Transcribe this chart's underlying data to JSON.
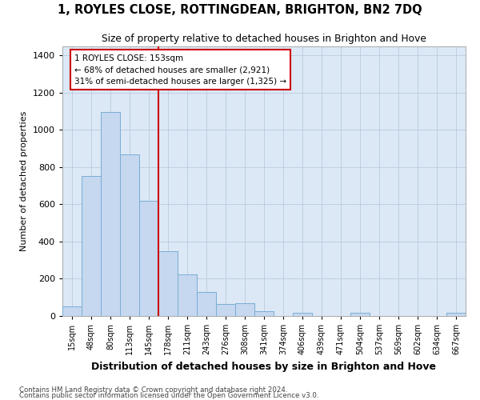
{
  "title": "1, ROYLES CLOSE, ROTTINGDEAN, BRIGHTON, BN2 7DQ",
  "subtitle": "Size of property relative to detached houses in Brighton and Hove",
  "xlabel": "Distribution of detached houses by size in Brighton and Hove",
  "ylabel": "Number of detached properties",
  "footer_line1": "Contains HM Land Registry data © Crown copyright and database right 2024.",
  "footer_line2": "Contains public sector information licensed under the Open Government Licence v3.0.",
  "bar_color": "#c5d8ef",
  "bar_edge_color": "#7aadd4",
  "bg_color": "#dce8f5",
  "vline_x": 4,
  "vline_color": "#cc0000",
  "annotation_line1": "1 ROYLES CLOSE: 153sqm",
  "annotation_line2": "← 68% of detached houses are smaller (2,921)",
  "annotation_line3": "31% of semi-detached houses are larger (1,325) →",
  "annotation_box_color": "#ffffff",
  "annotation_box_edge": "#cc0000",
  "categories": [
    "15sqm",
    "48sqm",
    "80sqm",
    "113sqm",
    "145sqm",
    "178sqm",
    "211sqm",
    "243sqm",
    "276sqm",
    "308sqm",
    "341sqm",
    "374sqm",
    "406sqm",
    "439sqm",
    "471sqm",
    "504sqm",
    "537sqm",
    "569sqm",
    "602sqm",
    "634sqm",
    "667sqm"
  ],
  "values": [
    50,
    750,
    1095,
    870,
    620,
    350,
    225,
    130,
    65,
    70,
    25,
    0,
    17,
    0,
    0,
    17,
    0,
    0,
    0,
    0,
    17
  ],
  "ylim": [
    0,
    1450
  ],
  "yticks": [
    0,
    200,
    400,
    600,
    800,
    1000,
    1200,
    1400
  ],
  "n_bars": 21
}
